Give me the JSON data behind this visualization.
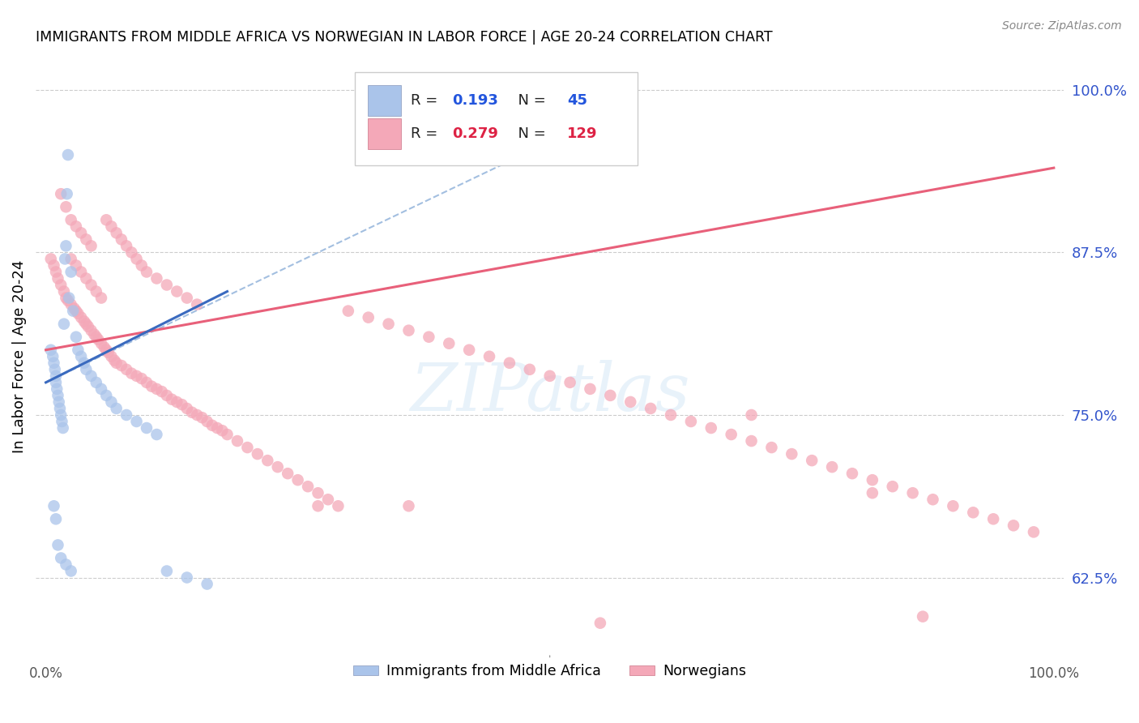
{
  "title": "IMMIGRANTS FROM MIDDLE AFRICA VS NORWEGIAN IN LABOR FORCE | AGE 20-24 CORRELATION CHART",
  "source": "Source: ZipAtlas.com",
  "ylabel": "In Labor Force | Age 20-24",
  "right_yticks": [
    0.625,
    0.75,
    0.875,
    1.0
  ],
  "right_yticklabels": [
    "62.5%",
    "75.0%",
    "87.5%",
    "100.0%"
  ],
  "ylim": [
    0.565,
    1.025
  ],
  "xlim": [
    -0.01,
    1.01
  ],
  "blue_R": 0.193,
  "blue_N": 45,
  "pink_R": 0.279,
  "pink_N": 129,
  "blue_color": "#aac4ea",
  "pink_color": "#f4a8b8",
  "blue_line_color": "#3a6abf",
  "pink_line_color": "#e8607a",
  "dashed_line_color": "#99b8dd",
  "legend_label_blue": "Immigrants from Middle Africa",
  "legend_label_pink": "Norwegians",
  "blue_scatter_x": [
    0.005,
    0.007,
    0.008,
    0.009,
    0.01,
    0.01,
    0.011,
    0.012,
    0.013,
    0.014,
    0.015,
    0.016,
    0.017,
    0.018,
    0.019,
    0.02,
    0.021,
    0.022,
    0.023,
    0.025,
    0.027,
    0.03,
    0.032,
    0.035,
    0.038,
    0.04,
    0.045,
    0.05,
    0.055,
    0.06,
    0.065,
    0.07,
    0.08,
    0.09,
    0.1,
    0.11,
    0.12,
    0.14,
    0.16,
    0.008,
    0.01,
    0.012,
    0.015,
    0.02,
    0.025
  ],
  "blue_scatter_y": [
    0.8,
    0.795,
    0.79,
    0.785,
    0.78,
    0.775,
    0.77,
    0.765,
    0.76,
    0.755,
    0.75,
    0.745,
    0.74,
    0.82,
    0.87,
    0.88,
    0.92,
    0.95,
    0.84,
    0.86,
    0.83,
    0.81,
    0.8,
    0.795,
    0.79,
    0.785,
    0.78,
    0.775,
    0.77,
    0.765,
    0.76,
    0.755,
    0.75,
    0.745,
    0.74,
    0.735,
    0.63,
    0.625,
    0.62,
    0.68,
    0.67,
    0.65,
    0.64,
    0.635,
    0.63
  ],
  "pink_scatter_x": [
    0.005,
    0.008,
    0.01,
    0.012,
    0.015,
    0.018,
    0.02,
    0.022,
    0.025,
    0.028,
    0.03,
    0.032,
    0.035,
    0.038,
    0.04,
    0.042,
    0.045,
    0.048,
    0.05,
    0.052,
    0.055,
    0.058,
    0.06,
    0.062,
    0.065,
    0.068,
    0.07,
    0.075,
    0.08,
    0.085,
    0.09,
    0.095,
    0.1,
    0.105,
    0.11,
    0.115,
    0.12,
    0.125,
    0.13,
    0.135,
    0.14,
    0.145,
    0.15,
    0.155,
    0.16,
    0.165,
    0.17,
    0.175,
    0.18,
    0.19,
    0.2,
    0.21,
    0.22,
    0.23,
    0.24,
    0.25,
    0.26,
    0.27,
    0.28,
    0.29,
    0.3,
    0.32,
    0.34,
    0.36,
    0.38,
    0.4,
    0.42,
    0.44,
    0.46,
    0.48,
    0.5,
    0.52,
    0.54,
    0.56,
    0.58,
    0.6,
    0.62,
    0.64,
    0.66,
    0.68,
    0.7,
    0.72,
    0.74,
    0.76,
    0.78,
    0.8,
    0.82,
    0.84,
    0.86,
    0.88,
    0.9,
    0.92,
    0.94,
    0.96,
    0.98,
    0.015,
    0.02,
    0.025,
    0.03,
    0.035,
    0.04,
    0.045,
    0.025,
    0.03,
    0.035,
    0.04,
    0.045,
    0.05,
    0.055,
    0.06,
    0.065,
    0.07,
    0.075,
    0.08,
    0.085,
    0.09,
    0.095,
    0.1,
    0.11,
    0.12,
    0.13,
    0.14,
    0.15,
    0.27,
    0.36,
    0.55,
    0.7,
    0.82,
    0.87
  ],
  "pink_scatter_y": [
    0.87,
    0.865,
    0.86,
    0.855,
    0.85,
    0.845,
    0.84,
    0.838,
    0.835,
    0.832,
    0.83,
    0.828,
    0.825,
    0.822,
    0.82,
    0.818,
    0.815,
    0.812,
    0.81,
    0.808,
    0.805,
    0.802,
    0.8,
    0.798,
    0.795,
    0.792,
    0.79,
    0.788,
    0.785,
    0.782,
    0.78,
    0.778,
    0.775,
    0.772,
    0.77,
    0.768,
    0.765,
    0.762,
    0.76,
    0.758,
    0.755,
    0.752,
    0.75,
    0.748,
    0.745,
    0.742,
    0.74,
    0.738,
    0.735,
    0.73,
    0.725,
    0.72,
    0.715,
    0.71,
    0.705,
    0.7,
    0.695,
    0.69,
    0.685,
    0.68,
    0.83,
    0.825,
    0.82,
    0.815,
    0.81,
    0.805,
    0.8,
    0.795,
    0.79,
    0.785,
    0.78,
    0.775,
    0.77,
    0.765,
    0.76,
    0.755,
    0.75,
    0.745,
    0.74,
    0.735,
    0.73,
    0.725,
    0.72,
    0.715,
    0.71,
    0.705,
    0.7,
    0.695,
    0.69,
    0.685,
    0.68,
    0.675,
    0.67,
    0.665,
    0.66,
    0.92,
    0.91,
    0.9,
    0.895,
    0.89,
    0.885,
    0.88,
    0.87,
    0.865,
    0.86,
    0.855,
    0.85,
    0.845,
    0.84,
    0.9,
    0.895,
    0.89,
    0.885,
    0.88,
    0.875,
    0.87,
    0.865,
    0.86,
    0.855,
    0.85,
    0.845,
    0.84,
    0.835,
    0.68,
    0.68,
    0.59,
    0.75,
    0.69,
    0.595
  ],
  "blue_line_x": [
    0.0,
    0.18
  ],
  "blue_line_y": [
    0.775,
    0.845
  ],
  "pink_line_x": [
    0.0,
    1.0
  ],
  "pink_line_y": [
    0.8,
    0.94
  ],
  "dash_line_x": [
    0.0,
    0.5
  ],
  "dash_line_y": [
    0.775,
    0.96
  ]
}
